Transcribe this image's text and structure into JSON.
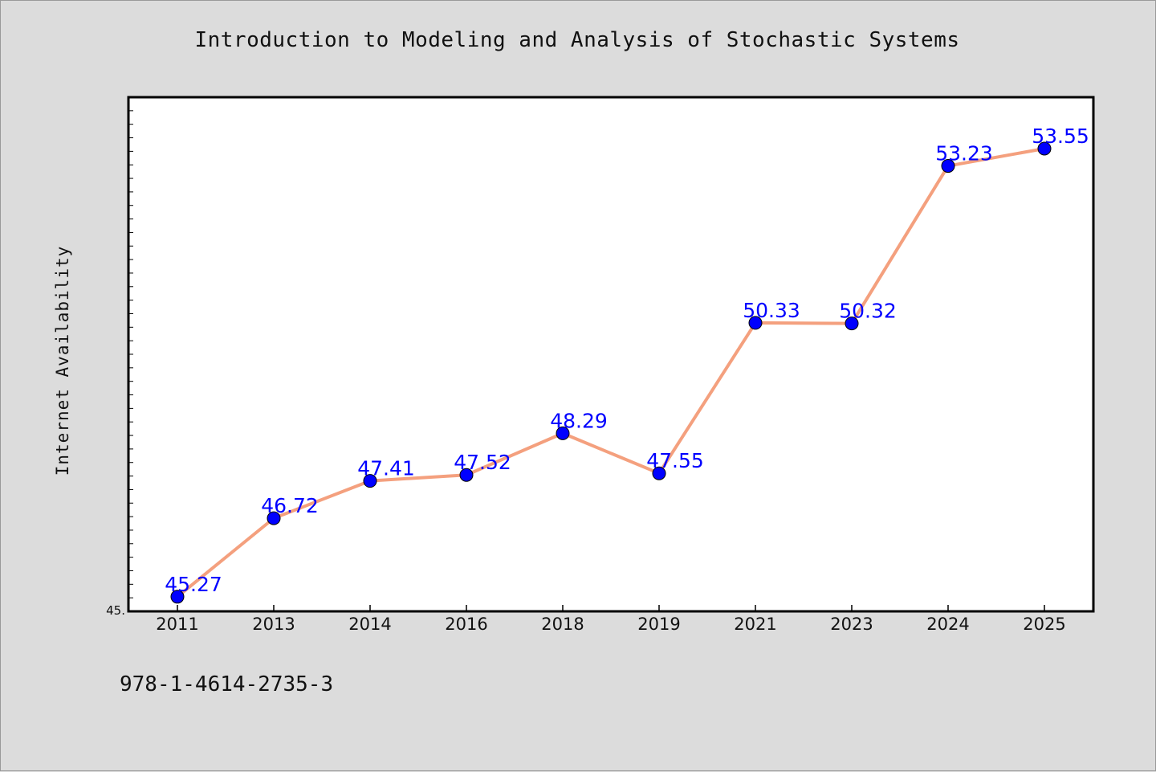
{
  "chart_data": {
    "type": "line",
    "title": "Introduction to Modeling and Analysis of Stochastic Systems",
    "xlabel": "",
    "ylabel": "Internet Availability",
    "categories": [
      "2011",
      "2013",
      "2014",
      "2016",
      "2018",
      "2019",
      "2021",
      "2023",
      "2024",
      "2025"
    ],
    "series": [
      {
        "values": [
          45.27,
          46.72,
          47.41,
          47.52,
          48.29,
          47.55,
          50.33,
          50.32,
          53.23,
          53.55
        ],
        "labels": [
          "45.27",
          "46.72",
          "47.41",
          "47.52",
          "48.29",
          "47.55",
          "50.33",
          "50.32",
          "53.23",
          "53.55"
        ],
        "line_color": "#f4a07e",
        "marker_color": "#0000ff"
      }
    ],
    "ylim": [
      45.0,
      54.5
    ],
    "y_tick_labels": [
      "45."
    ],
    "grid": false,
    "legend": "none",
    "label_color": "#0000ff",
    "background": "#dcdcdc",
    "plot_background": "#ffffff"
  },
  "footer_text": "978-1-4614-2735-3"
}
